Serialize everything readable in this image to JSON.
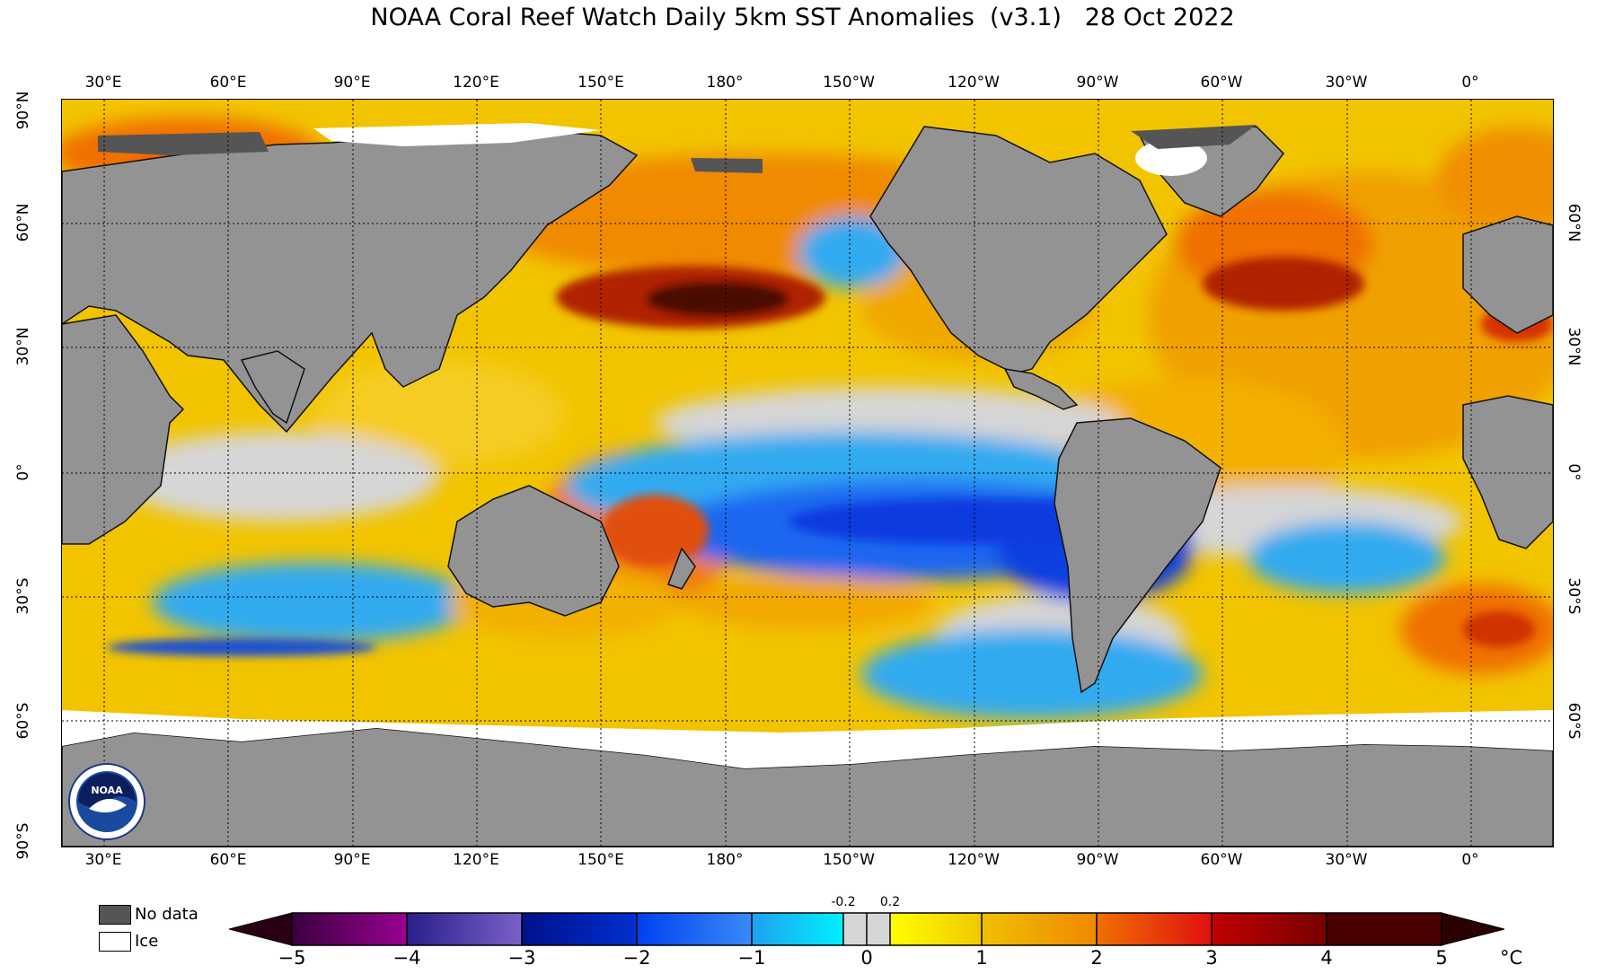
{
  "title": "NOAA Coral Reef Watch Daily 5km SST Anomalies  (v3.1)   28 Oct 2022",
  "longitude_labels": [
    "30°E",
    "60°E",
    "90°E",
    "120°E",
    "150°E",
    "180°",
    "150°W",
    "120°W",
    "90°W",
    "60°W",
    "30°W",
    "0°"
  ],
  "latitude_labels": [
    "90°N",
    "60°N",
    "30°N",
    "0°",
    "30°S",
    "60°S",
    "90°S"
  ],
  "legend": {
    "no_data": "No data",
    "ice": "Ice"
  },
  "colorbar": {
    "ticks": [
      "−5",
      "−4",
      "−3",
      "−2",
      "−1",
      "0",
      "1",
      "2",
      "3",
      "4",
      "5"
    ],
    "threshold_labels": [
      "-0.2",
      "0.2"
    ],
    "unit": "°C"
  },
  "colors": {
    "land": "#939393",
    "no_data": "#555555",
    "ice": "#ffffff",
    "neutral": "#d6d6d6"
  }
}
